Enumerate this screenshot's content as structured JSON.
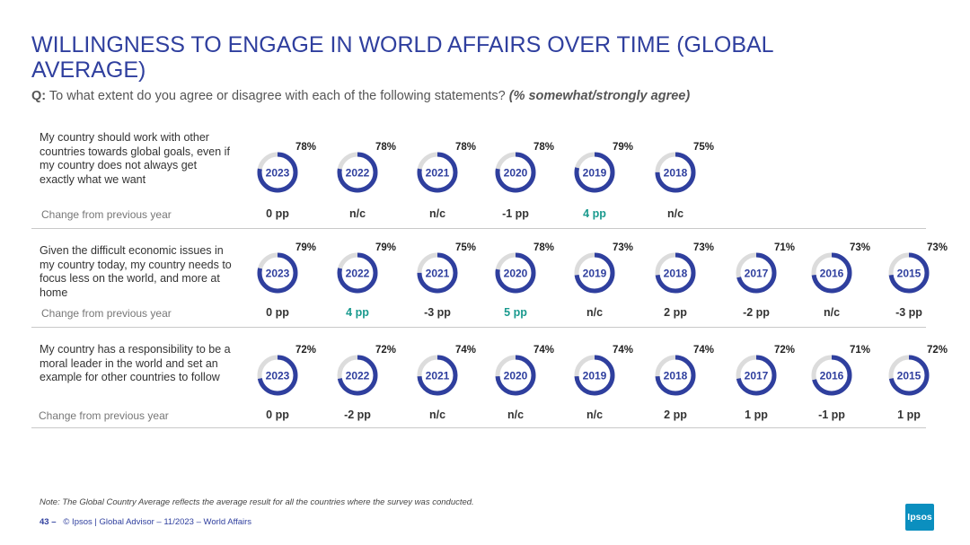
{
  "title": "WILLINGNESS TO ENGAGE IN WORLD AFFAIRS OVER TIME (GLOBAL AVERAGE)",
  "question": {
    "prefix": "Q:",
    "text": "To what extent do you agree or disagree with each of the following statements?",
    "note": "(% somewhat/strongly agree)"
  },
  "change_label": "Change from previous year",
  "colors": {
    "ring": "#2f3f9e",
    "track": "#dcdcdc",
    "increase": "#1a9a8e"
  },
  "chart_data": {
    "type": "donut-grid",
    "rows": [
      {
        "statement": "My country should work with other countries towards global goals, even if my country does not always get exactly what we want",
        "points": [
          {
            "year": "2023",
            "value": "78%",
            "change": "0 pp"
          },
          {
            "year": "2022",
            "value": "78%",
            "change": "n/c"
          },
          {
            "year": "2021",
            "value": "78%",
            "change": "n/c"
          },
          {
            "year": "2020",
            "value": "78%",
            "change": "-1 pp"
          },
          {
            "year": "2019",
            "value": "79%",
            "change": "4 pp",
            "highlight": true
          },
          {
            "year": "2018",
            "value": "75%",
            "change": "n/c"
          }
        ]
      },
      {
        "statement": "Given the difficult economic issues in my country today, my country needs to focus less on the world, and more at home",
        "points": [
          {
            "year": "2023",
            "value": "79%",
            "change": "0 pp"
          },
          {
            "year": "2022",
            "value": "79%",
            "change": "4 pp",
            "highlight": true
          },
          {
            "year": "2021",
            "value": "75%",
            "change": "-3 pp"
          },
          {
            "year": "2020",
            "value": "78%",
            "change": "5 pp",
            "highlight": true
          },
          {
            "year": "2019",
            "value": "73%",
            "change": "n/c"
          },
          {
            "year": "2018",
            "value": "73%",
            "change": "2 pp"
          },
          {
            "year": "2017",
            "value": "71%",
            "change": "-2 pp"
          },
          {
            "year": "2016",
            "value": "73%",
            "change": "n/c"
          },
          {
            "year": "2015",
            "value": "73%",
            "change": "-3 pp"
          }
        ]
      },
      {
        "statement": "My country has a responsibility to be a moral leader in the world and set an example for other countries to follow",
        "points": [
          {
            "year": "2023",
            "value": "72%",
            "change": "0 pp"
          },
          {
            "year": "2022",
            "value": "72%",
            "change": "-2 pp"
          },
          {
            "year": "2021",
            "value": "74%",
            "change": "n/c"
          },
          {
            "year": "2020",
            "value": "74%",
            "change": "n/c"
          },
          {
            "year": "2019",
            "value": "74%",
            "change": "n/c"
          },
          {
            "year": "2018",
            "value": "74%",
            "change": "2 pp"
          },
          {
            "year": "2017",
            "value": "72%",
            "change": "1 pp"
          },
          {
            "year": "2016",
            "value": "71%",
            "change": "-1 pp"
          },
          {
            "year": "2015",
            "value": "72%",
            "change": "1 pp"
          }
        ]
      }
    ]
  },
  "note": "Note: The Global Country Average reflects the average result for all the countries where the survey was conducted.",
  "footer": {
    "page": "43 –",
    "text": "© Ipsos | Global Advisor – 11/2023 – World Affairs"
  },
  "logo": "Ipsos"
}
